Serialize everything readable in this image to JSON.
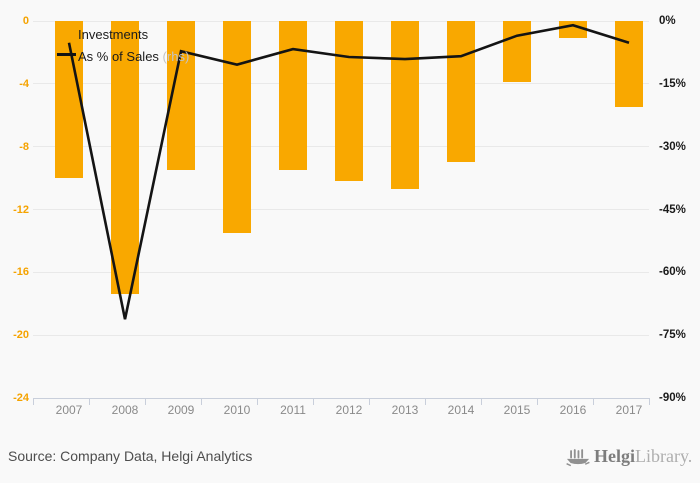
{
  "chart_data": {
    "type": "bar+line",
    "categories": [
      "2007",
      "2008",
      "2009",
      "2010",
      "2011",
      "2012",
      "2013",
      "2014",
      "2015",
      "2016",
      "2017"
    ],
    "series": [
      {
        "name": "Investments",
        "type": "bar",
        "axis": "left",
        "color": "#F9A800",
        "values": [
          -10.0,
          -17.4,
          -9.5,
          -13.5,
          -9.5,
          -10.2,
          -10.7,
          -9.0,
          -3.9,
          -1.1,
          -5.5
        ]
      },
      {
        "name": "As % of Sales",
        "type": "line",
        "axis": "right",
        "color": "#141414",
        "unit": "%",
        "values": [
          -5.2,
          -71.2,
          -7.2,
          -10.4,
          -6.7,
          -8.6,
          -9.1,
          -8.4,
          -3.5,
          -1.0,
          -5.2
        ]
      }
    ],
    "left_axis": {
      "ticks": [
        0,
        -4,
        -8,
        -12,
        -16,
        -20,
        -24
      ],
      "min": -24,
      "max": 0
    },
    "right_axis": {
      "ticks": [
        "0%",
        "-15%",
        "-30%",
        "-45%",
        "-60%",
        "-75%",
        "-90%"
      ],
      "min": -90,
      "max": 0,
      "unit": "%"
    },
    "legend": [
      {
        "label": "Investments"
      },
      {
        "label": "As % of Sales",
        "suffix": " (rhs)"
      }
    ],
    "grid": "horizontal",
    "legend_position": "top-left"
  },
  "colors": {
    "bar": "#F9A800",
    "line": "#141414",
    "left_axis_labels": "#F5A300"
  },
  "footer": {
    "source": "Source: Company Data, Helgi Analytics"
  },
  "logo": {
    "name": "Helgi",
    "suffix": "Library."
  }
}
